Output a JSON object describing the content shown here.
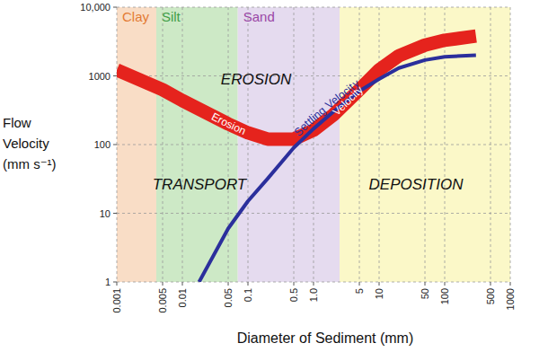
{
  "chart_data": {
    "type": "line",
    "x_label": "Diameter of Sediment (mm)",
    "y_label": [
      "Flow",
      "Velocity",
      "(mm s⁻¹)"
    ],
    "log": true,
    "grid": true,
    "xlim": [
      0.001,
      1000
    ],
    "ylim": [
      1,
      10000
    ],
    "xticks": [
      0.001,
      0.005,
      0.01,
      0.05,
      0.1,
      0.5,
      {
        "value": 1,
        "label": "1.0"
      },
      5,
      10,
      50,
      100,
      500,
      1000
    ],
    "yticks": [
      1,
      10,
      100,
      1000,
      {
        "value": 10000,
        "label": "10,000"
      }
    ],
    "zones": [
      {
        "label": "Clay",
        "from": 0.001,
        "to": 0.004,
        "color": "#f9ddc6"
      },
      {
        "label": "Silt",
        "from": 0.004,
        "to": 0.07,
        "color": "#cde9c6"
      },
      {
        "label": "Sand",
        "from": 0.07,
        "to": 2.5,
        "color": "#e5dbef"
      },
      {
        "label": null,
        "from": 2.5,
        "to": 1000,
        "color": "#fbf8c8"
      }
    ],
    "annotations": [
      "EROSION",
      "TRANSPORT",
      "DEPOSITION"
    ],
    "series": [
      {
        "name": "Erosion Velocity",
        "color": "#e5231d",
        "x": [
          0.001,
          0.005,
          0.01,
          0.05,
          0.1,
          0.2,
          0.5,
          1,
          2,
          5,
          10,
          20,
          50,
          100,
          300
        ],
        "values": [
          1220,
          630,
          437,
          200,
          148,
          120,
          120,
          162,
          270,
          630,
          1220,
          1960,
          2800,
          3300,
          3800
        ]
      },
      {
        "name": "Settling Velocity",
        "color": "#2b2f9c",
        "x": [
          0.018,
          0.05,
          0.1,
          0.2,
          0.5,
          1,
          2,
          5,
          10,
          20,
          50,
          100,
          300
        ],
        "values": [
          1,
          6,
          15,
          32,
          90,
          170,
          300,
          600,
          900,
          1300,
          1700,
          1900,
          2000
        ]
      }
    ]
  }
}
